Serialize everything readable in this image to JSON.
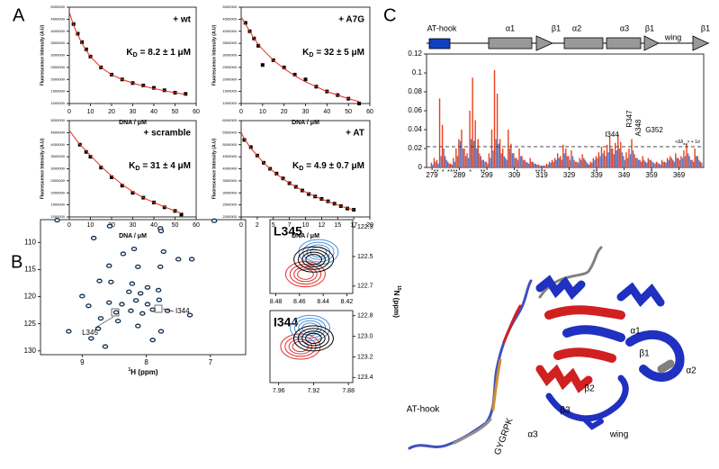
{
  "panel_labels": [
    "A",
    "B",
    "C"
  ],
  "chart_data": [
    {
      "type": "scatter",
      "annotation": "+ wt",
      "kd_label": "K",
      "kd_sub": "D",
      "kd_value": "= 8.2 ± 1 μM",
      "x_label": "DNA / μM",
      "y_label": "Fluorescence Intensity (A.U)",
      "x": [
        0,
        2,
        4,
        6,
        8,
        10,
        15,
        20,
        25,
        30,
        35,
        40,
        45,
        50,
        55
      ],
      "series": [
        {
          "mode": "markers",
          "color": "#000000",
          "values": [
            null,
            4300000,
            3900000,
            3550000,
            3250000,
            2950000,
            2500000,
            2200000,
            2000000,
            1850000,
            1750000,
            1650000,
            1550000,
            1450000,
            1400000
          ]
        },
        {
          "mode": "line",
          "color": "#e03020",
          "values": [
            4800000,
            4250000,
            3850000,
            3500000,
            3200000,
            2950000,
            2500000,
            2200000,
            2000000,
            1850000,
            1720000,
            1620000,
            1530000,
            1450000,
            1380000
          ]
        }
      ],
      "xlim": [
        0,
        60
      ],
      "xticks": [
        0,
        10,
        20,
        30,
        40,
        50,
        60
      ],
      "ylim": [
        1000000,
        5000000
      ],
      "yticks": [
        1000000,
        1500000,
        2000000,
        2500000,
        3000000,
        3500000,
        4000000,
        4500000,
        5000000
      ]
    },
    {
      "type": "scatter",
      "annotation": "+ A7G",
      "kd_label": "K",
      "kd_sub": "D",
      "kd_value": "= 32 ± 5 μM",
      "x_label": "DNA / μM",
      "y_label": "Fluorescence Intensity (A.U)",
      "x": [
        0,
        2,
        4,
        6,
        8,
        10,
        15,
        20,
        25,
        30,
        35,
        40,
        45,
        50,
        55
      ],
      "series": [
        {
          "mode": "markers",
          "color": "#000000",
          "values": [
            null,
            4350000,
            4000000,
            3700000,
            3400000,
            2600000,
            2800000,
            2500000,
            2200000,
            2000000,
            1700000,
            1500000,
            1350000,
            1200000,
            1000000
          ]
        },
        {
          "mode": "line",
          "color": "#e03020",
          "values": [
            4600000,
            4300000,
            4000000,
            3700000,
            3450000,
            3250000,
            2800000,
            2450000,
            2150000,
            1900000,
            1700000,
            1500000,
            1350000,
            1200000,
            1080000
          ]
        }
      ],
      "xlim": [
        0,
        60
      ],
      "xticks": [
        0,
        10,
        20,
        30,
        40,
        50,
        60
      ],
      "ylim": [
        1000000,
        5000000
      ],
      "yticks": [
        1000000,
        1500000,
        2000000,
        2500000,
        3000000,
        3500000,
        4000000,
        4500000,
        5000000
      ]
    },
    {
      "type": "scatter",
      "annotation": "+ scramble",
      "kd_label": "K",
      "kd_sub": "D",
      "kd_value": "= 31 ± 4 μM",
      "x_label": "DNA / μM",
      "y_label": "Fluorescence Intensity (A.U)",
      "x": [
        0,
        5,
        8,
        10,
        15,
        20,
        25,
        30,
        35,
        40,
        45,
        50,
        53
      ],
      "series": [
        {
          "mode": "markers",
          "color": "#000000",
          "values": [
            null,
            4000000,
            3700000,
            3500000,
            3050000,
            2650000,
            2300000,
            2000000,
            1800000,
            1600000,
            1400000,
            1250000,
            1100000
          ]
        },
        {
          "mode": "line",
          "color": "#e03020",
          "values": [
            4600000,
            4000000,
            3750000,
            3550000,
            3100000,
            2700000,
            2350000,
            2050000,
            1800000,
            1600000,
            1420000,
            1250000,
            1150000
          ]
        }
      ],
      "xlim": [
        0,
        60
      ],
      "xticks": [
        0,
        10,
        20,
        30,
        40,
        50,
        60
      ],
      "ylim": [
        1000000,
        5000000
      ],
      "yticks": [
        1000000,
        1500000,
        2000000,
        2500000,
        3000000,
        3500000,
        4000000,
        4500000,
        5000000
      ]
    },
    {
      "type": "scatter",
      "annotation": "+ AT",
      "kd_label": "K",
      "kd_sub": "D",
      "kd_value": "= 4.9 ± 0.7 μM",
      "x_label": "DNA / μM",
      "y_label": "Fluorescence Intensity (A.U)",
      "x": [
        0,
        0.5,
        1.5,
        2.5,
        3.5,
        4.5,
        5.5,
        6.5,
        7.5,
        8.5,
        9.5,
        10.5,
        11.5,
        12.5,
        13.5,
        14.5,
        15.5,
        16.5,
        17.5
      ],
      "series": [
        {
          "mode": "markers",
          "color": "#000000",
          "values": [
            null,
            5200000,
            4900000,
            4550000,
            4250000,
            4000000,
            3800000,
            3600000,
            3400000,
            3250000,
            3100000,
            2950000,
            2850000,
            2750000,
            2650000,
            2550000,
            2450000,
            2350000,
            2300000
          ]
        },
        {
          "mode": "line",
          "color": "#e03020",
          "values": [
            5500000,
            5250000,
            4850000,
            4550000,
            4250000,
            4000000,
            3780000,
            3580000,
            3400000,
            3250000,
            3100000,
            2970000,
            2850000,
            2740000,
            2640000,
            2540000,
            2450000,
            2370000,
            2290000
          ]
        }
      ],
      "xlim": [
        0,
        20
      ],
      "xticks": [
        0,
        {
          "value": 2.5,
          "label": "2"
        },
        5,
        {
          "value": 7.5,
          "label": "7"
        },
        10,
        {
          "value": 12.5,
          "label": "12"
        },
        15,
        {
          "value": 17.5,
          "label": "17"
        },
        20
      ],
      "ylim": [
        2000000,
        6000000
      ],
      "yticks": [
        2000000,
        2500000,
        3000000,
        3500000,
        4000000,
        4500000,
        5000000,
        5500000,
        6000000
      ]
    },
    {
      "type": "bar",
      "secondary_structure": [
        "AT-hook",
        "α1",
        "β1",
        "α2",
        "α3",
        "β1",
        "wing",
        "β1"
      ],
      "threshold": 0.022,
      "threshold_label": {
        "pre": "<Δδ",
        "sub": "av",
        "post": "> + 1σ"
      },
      "peak_labels": [
        "I344",
        "R347",
        "A348",
        "G352"
      ],
      "asterisk": "*",
      "asterisk_residues": [
        281,
        283,
        293,
        297,
        298,
        310,
        317,
        318,
        319,
        320,
        338,
        339,
        359
      ],
      "green_asterisk_residues": [
        280,
        285,
        286,
        287,
        288
      ],
      "x": [
        279,
        280,
        281,
        282,
        283,
        284,
        285,
        286,
        287,
        288,
        289,
        290,
        291,
        292,
        293,
        294,
        295,
        296,
        297,
        298,
        299,
        300,
        301,
        302,
        303,
        304,
        305,
        306,
        307,
        308,
        309,
        310,
        311,
        312,
        313,
        314,
        315,
        316,
        317,
        318,
        319,
        320,
        321,
        322,
        323,
        324,
        325,
        326,
        327,
        328,
        329,
        330,
        331,
        332,
        333,
        334,
        335,
        336,
        337,
        338,
        339,
        340,
        341,
        342,
        343,
        344,
        345,
        346,
        347,
        348,
        349,
        350,
        351,
        352,
        353,
        354,
        355,
        356,
        357,
        358,
        359,
        360,
        361,
        362,
        363,
        364,
        365,
        366,
        367,
        368,
        369,
        370,
        371,
        372,
        373,
        374,
        375,
        376,
        377
      ],
      "series": [
        {
          "color": "#e8401c",
          "values": [
            0.005,
            0.01,
            0.008,
            0.073,
            0.045,
            0.012,
            0.006,
            0.004,
            0.01,
            0.02,
            0.03,
            0.04,
            0.02,
            0.015,
            0.06,
            0.095,
            0.05,
            0.03,
            0.012,
            0.008,
            0.006,
            0.015,
            0.04,
            0.103,
            0.078,
            0.03,
            0.02,
            0.01,
            0.04,
            0.025,
            0.015,
            0.01,
            0.02,
            0.012,
            0.008,
            0.005,
            0.01,
            0.006,
            0.004,
            0.003,
            0.002,
            0.002,
            0.004,
            0.006,
            0.008,
            0.01,
            0.015,
            0.012,
            0.024,
            0.02,
            0.012,
            0.018,
            0.008,
            0.006,
            0.01,
            0.014,
            0.008,
            0.004,
            0.006,
            0.01,
            0.012,
            0.016,
            0.022,
            0.018,
            0.024,
            0.033,
            0.02,
            0.026,
            0.035,
            0.027,
            0.012,
            0.016,
            0.02,
            0.03,
            0.014,
            0.01,
            0.008,
            0.012,
            0.006,
            0.01,
            0.008,
            0.005,
            0.006,
            0.004,
            0.008,
            0.006,
            0.01,
            0.012,
            0.008,
            0.015,
            0.01,
            0.012,
            0.018,
            0.025,
            0.012,
            0.008,
            0.02,
            0.012,
            0.006
          ]
        },
        {
          "color": "#4f7fd8",
          "values": [
            0.003,
            0.006,
            0.004,
            0.012,
            0.02,
            0.008,
            0.004,
            0.003,
            0.006,
            0.012,
            0.028,
            0.02,
            0.012,
            0.01,
            0.03,
            0.028,
            0.02,
            0.015,
            0.008,
            0.006,
            0.004,
            0.01,
            0.018,
            0.03,
            0.025,
            0.015,
            0.012,
            0.008,
            0.02,
            0.015,
            0.01,
            0.008,
            0.012,
            0.008,
            0.006,
            0.004,
            0.006,
            0.004,
            0.003,
            0.002,
            0.002,
            0.002,
            0.003,
            0.005,
            0.006,
            0.008,
            0.01,
            0.008,
            0.015,
            0.012,
            0.008,
            0.012,
            0.006,
            0.005,
            0.008,
            0.01,
            0.006,
            0.003,
            0.005,
            0.008,
            0.01,
            0.012,
            0.015,
            0.012,
            0.016,
            0.02,
            0.014,
            0.018,
            0.02,
            0.016,
            0.008,
            0.01,
            0.014,
            0.018,
            0.01,
            0.008,
            0.006,
            0.008,
            0.005,
            0.008,
            0.006,
            0.004,
            0.005,
            0.003,
            0.006,
            0.005,
            0.008,
            0.01,
            0.006,
            0.01,
            0.008,
            0.01,
            0.012,
            0.015,
            0.008,
            0.006,
            0.012,
            0.008,
            0.005
          ]
        }
      ],
      "xlim": [
        277,
        378
      ],
      "xticks": [
        279,
        289,
        299,
        309,
        319,
        329,
        339,
        349,
        359,
        369
      ],
      "ylim": [
        0,
        0.12
      ],
      "yticks": [
        0,
        0.02,
        0.04,
        0.06,
        0.08,
        0.1,
        0.12
      ]
    },
    {
      "type": "scatter",
      "x_label_sup": "1",
      "x_label": "H (ppm)",
      "annotations": [
        "L345",
        "I344"
      ],
      "y_inverted": true,
      "x": [
        9.39,
        8.57,
        7.78,
        7.77,
        6.94,
        8.82,
        8.36,
        8.19,
        7.73,
        7.5,
        8.58,
        8.13,
        7.78,
        7.29,
        8.73,
        8.55,
        8.22,
        7.98,
        7.81,
        8.27,
        8.09,
        7.8,
        8.58,
        8.38,
        8.16,
        7.98,
        8.24,
        8.47,
        8.06,
        7.9,
        7.67,
        8.9,
        9.0,
        7.32,
        8.71,
        8.44,
        8.13,
        8.75,
        9.21,
        7.77,
        8.86,
        7.9,
        8.64
      ],
      "series": [
        {
          "mode": "markers",
          "color": "#0c2c4c",
          "values": [
            105.9,
            107,
            107.4,
            107.9,
            106,
            109.2,
            112.1,
            111.2,
            111.7,
            113.1,
            114.3,
            114.5,
            114.5,
            113.1,
            117.1,
            117.3,
            117.6,
            118.3,
            118.8,
            119.1,
            119.4,
            120.6,
            121.1,
            121.4,
            120.7,
            121.4,
            122.6,
            122.9,
            123.1,
            122.4,
            122.6,
            121.7,
            119.9,
            123.4,
            124,
            124.5,
            125.4,
            125.9,
            126.4,
            126.4,
            127.7,
            128,
            129.2
          ]
        }
      ],
      "xlim": [
        9.65,
        6.45
      ],
      "xticks": [
        9,
        8,
        7
      ],
      "ylim": [
        105.8,
        130.7
      ],
      "yticks": [
        110,
        115,
        120,
        125,
        130
      ]
    },
    {
      "type": "contour",
      "title": "L345",
      "y_label_sup": "15",
      "y_label": "N (ppm)",
      "y_inverted": true,
      "y_axis_side": "right",
      "series": [
        {
          "color": "#e03030",
          "x": [
            8.455
          ],
          "values": [
            122.62
          ]
        },
        {
          "color": "#4a90d8",
          "x": [
            8.444
          ],
          "values": [
            122.47
          ]
        },
        {
          "color": "#000000",
          "x": [
            8.448
          ],
          "values": [
            122.52
          ]
        }
      ],
      "xlim": [
        8.485,
        8.415
      ],
      "xticks": [
        8.48,
        8.46,
        8.44,
        8.42
      ],
      "ylim": [
        122.25,
        122.75
      ],
      "yticks": [
        122.3,
        122.5,
        122.7
      ]
    },
    {
      "type": "contour",
      "title": "I344",
      "y_inverted": true,
      "y_axis_side": "right",
      "series": [
        {
          "color": "#e03030",
          "x": [
            7.935
          ],
          "values": [
            123.1
          ]
        },
        {
          "color": "#4a90d8",
          "x": [
            7.924
          ],
          "values": [
            122.92
          ]
        },
        {
          "color": "#000000",
          "x": [
            7.92
          ],
          "values": [
            123.02
          ]
        }
      ],
      "xlim": [
        7.97,
        7.875
      ],
      "xticks": [
        7.96,
        7.92,
        7.88
      ],
      "ylim": [
        122.75,
        123.45
      ],
      "yticks": [
        122.8,
        {
          "value": 123,
          "label": "123.0"
        },
        123.2,
        123.4
      ]
    }
  ],
  "structure": {
    "labels": [
      "α1",
      "β1",
      "β2",
      "α2",
      "β3",
      "α3",
      "wing",
      "AT-hook",
      "GYGRPK"
    ]
  }
}
